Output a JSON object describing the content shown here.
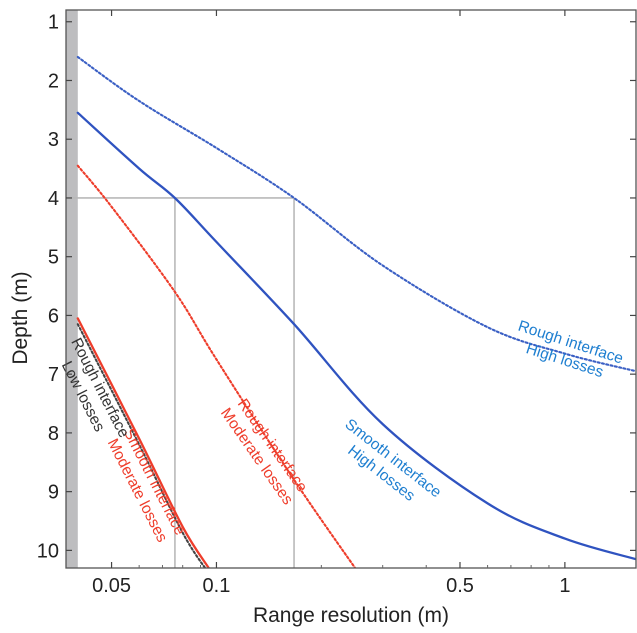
{
  "chart_data": {
    "type": "line",
    "xlabel": "Range resolution (m)",
    "ylabel": "Depth  (m)",
    "x_scale": "log",
    "xlim": [
      0.037,
      1.6
    ],
    "ylim": [
      10.3,
      0.8
    ],
    "y_reversed": true,
    "x_ticks": [
      {
        "value": 0.05,
        "label": "0.05"
      },
      {
        "value": 0.1,
        "label": "0.1"
      },
      {
        "value": 0.5,
        "label": "0.5"
      },
      {
        "value": 1,
        "label": "1"
      }
    ],
    "y_ticks": [
      {
        "value": 1,
        "label": "1"
      },
      {
        "value": 2,
        "label": "2"
      },
      {
        "value": 3,
        "label": "3"
      },
      {
        "value": 4,
        "label": "4"
      },
      {
        "value": 5,
        "label": "5"
      },
      {
        "value": 6,
        "label": "6"
      },
      {
        "value": 7,
        "label": "7"
      },
      {
        "value": 8,
        "label": "8"
      },
      {
        "value": 9,
        "label": "9"
      },
      {
        "value": 10,
        "label": "10"
      }
    ],
    "shaded_region": {
      "x": [
        0.037,
        0.04
      ],
      "color": "#bdbdbf"
    },
    "reference_lines": [
      {
        "type": "horizontal",
        "y": 4,
        "x_from": 0.037,
        "x_to": 0.167
      },
      {
        "type": "vertical",
        "x": 0.076,
        "y_from": 4,
        "y_to": 10.3
      },
      {
        "type": "vertical",
        "x": 0.167,
        "y_from": 4,
        "y_to": 10.3
      }
    ],
    "series": [
      {
        "color": "#3a5fc4",
        "dash": "dotted",
        "x": [
          0.04,
          0.06,
          0.1,
          0.167,
          0.3,
          0.6,
          1.0,
          1.6
        ],
        "y": [
          1.6,
          2.35,
          3.15,
          4.0,
          5.15,
          6.2,
          6.65,
          6.95
        ]
      },
      {
        "color": "#2f53c0",
        "dash": "solid",
        "x": [
          0.04,
          0.06,
          0.076,
          0.1,
          0.167,
          0.3,
          0.6,
          1.0,
          1.6
        ],
        "y": [
          2.55,
          3.5,
          4.0,
          4.75,
          6.15,
          7.85,
          9.2,
          9.8,
          10.15
        ]
      },
      {
        "color": "#ee3d2b",
        "dash": "dotted",
        "x": [
          0.04,
          0.05,
          0.076,
          0.1,
          0.167,
          0.25
        ],
        "y": [
          3.45,
          4.15,
          5.6,
          6.75,
          8.8,
          10.3
        ]
      },
      {
        "color": "#ee3d2b",
        "dash": "solid",
        "x": [
          0.04,
          0.06,
          0.08,
          0.095
        ],
        "y": [
          6.05,
          8.1,
          9.6,
          10.3
        ]
      },
      {
        "color": "#444444",
        "dash": "dotted",
        "x": [
          0.04,
          0.06,
          0.08,
          0.094
        ],
        "y": [
          6.15,
          8.2,
          9.7,
          10.35
        ]
      }
    ],
    "annotations": [
      {
        "lines": [
          "Rough interface",
          "High losses"
        ],
        "color": "#1f7fd0",
        "x": 1.02,
        "y": 6.6,
        "rotate": 18
      },
      {
        "lines": [
          "Smooth interface",
          "High losses"
        ],
        "color": "#1f7fd0",
        "x": 0.31,
        "y": 8.55,
        "rotate": 38
      },
      {
        "lines": [
          "Rough interface",
          "Moderate losses"
        ],
        "color": "#ee3d2b",
        "x": 0.138,
        "y": 8.3,
        "rotate": 55
      },
      {
        "lines": [
          "Smooth interface",
          "Moderate losses"
        ],
        "color": "#ee3d2b",
        "x": 0.063,
        "y": 8.9,
        "rotate": 63
      },
      {
        "lines": [
          "Rough interface",
          "Low losses"
        ],
        "color": "#333333",
        "x": 0.044,
        "y": 7.3,
        "rotate": 63
      }
    ]
  }
}
